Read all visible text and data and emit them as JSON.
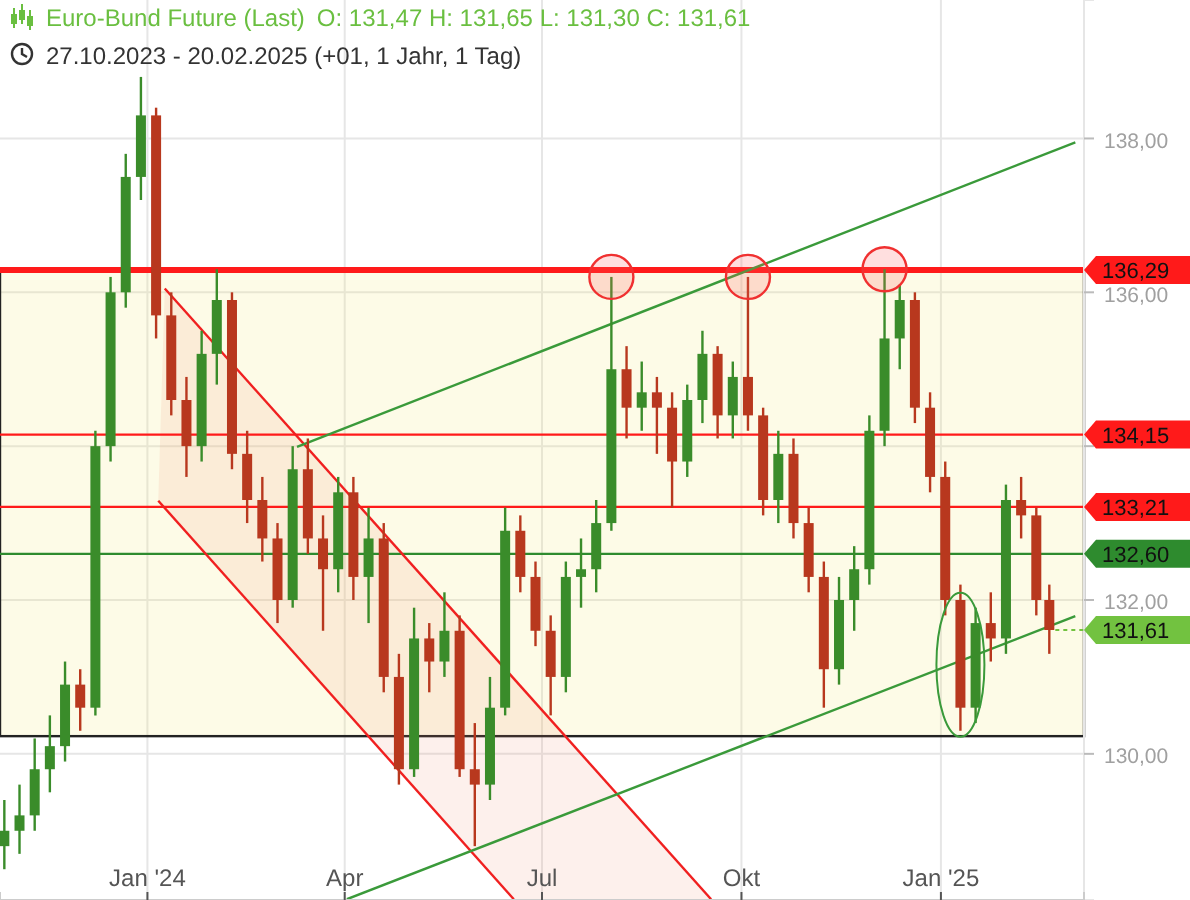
{
  "chart_data": {
    "type": "candlestick",
    "title": "Euro-Bund Future (Last)",
    "subtitle": "27.10.2023 - 20.02.2025   (+01, 1 Jahr, 1 Tag)",
    "annotations": [
      "O: 131,47  H: 131,65  L: 131,30  C: 131,61",
      {
        "text": "131,61",
        "x": "2025-02-20",
        "y": 131.61
      }
    ],
    "x": [
      "2023-10-27",
      "2023-11-03",
      "2023-11-10",
      "2023-11-17",
      "2023-11-24",
      "2023-12-01",
      "2023-12-08",
      "2023-12-15",
      "2023-12-22",
      "2023-12-29",
      "2024-01-05",
      "2024-01-12",
      "2024-01-19",
      "2024-01-26",
      "2024-02-02",
      "2024-02-09",
      "2024-02-16",
      "2024-02-23",
      "2024-03-01",
      "2024-03-08",
      "2024-03-15",
      "2024-03-22",
      "2024-03-29",
      "2024-04-05",
      "2024-04-12",
      "2024-04-19",
      "2024-04-26",
      "2024-05-03",
      "2024-05-10",
      "2024-05-17",
      "2024-05-24",
      "2024-05-31",
      "2024-06-07",
      "2024-06-14",
      "2024-06-21",
      "2024-06-28",
      "2024-07-05",
      "2024-07-12",
      "2024-07-19",
      "2024-07-26",
      "2024-08-02",
      "2024-08-09",
      "2024-08-16",
      "2024-08-23",
      "2024-08-30",
      "2024-09-06",
      "2024-09-13",
      "2024-09-20",
      "2024-09-27",
      "2024-10-04",
      "2024-10-11",
      "2024-10-18",
      "2024-10-25",
      "2024-11-01",
      "2024-11-08",
      "2024-11-15",
      "2024-11-22",
      "2024-11-29",
      "2024-12-06",
      "2024-12-13",
      "2024-12-20",
      "2024-12-27",
      "2025-01-03",
      "2025-01-10",
      "2025-01-17",
      "2025-01-24",
      "2025-01-31",
      "2025-02-07",
      "2025-02-14",
      "2025-02-20"
    ],
    "ohlc": [
      [
        128.8,
        129.4,
        128.5,
        129.0
      ],
      [
        129.0,
        129.6,
        128.7,
        129.2
      ],
      [
        129.2,
        130.2,
        129.0,
        129.8
      ],
      [
        129.8,
        130.5,
        129.5,
        130.1
      ],
      [
        130.1,
        131.2,
        129.9,
        130.9
      ],
      [
        130.9,
        131.1,
        130.3,
        130.6
      ],
      [
        130.6,
        134.2,
        130.5,
        134.0
      ],
      [
        134.0,
        136.2,
        133.8,
        136.0
      ],
      [
        136.0,
        137.8,
        135.8,
        137.5
      ],
      [
        137.5,
        138.8,
        137.2,
        138.3
      ],
      [
        138.3,
        138.4,
        135.4,
        135.7
      ],
      [
        135.7,
        136.0,
        134.4,
        134.6
      ],
      [
        134.6,
        134.9,
        133.6,
        134.0
      ],
      [
        134.0,
        135.5,
        133.8,
        135.2
      ],
      [
        135.2,
        136.3,
        134.8,
        135.9
      ],
      [
        135.9,
        136.0,
        133.7,
        133.9
      ],
      [
        133.9,
        134.2,
        133.0,
        133.3
      ],
      [
        133.3,
        133.6,
        132.5,
        132.8
      ],
      [
        132.8,
        133.0,
        131.7,
        132.0
      ],
      [
        132.0,
        134.0,
        131.9,
        133.7
      ],
      [
        133.7,
        134.1,
        132.6,
        132.8
      ],
      [
        132.8,
        133.1,
        131.6,
        132.4
      ],
      [
        132.4,
        133.6,
        132.1,
        133.4
      ],
      [
        133.4,
        133.6,
        132.0,
        132.3
      ],
      [
        132.3,
        133.2,
        131.7,
        132.8
      ],
      [
        132.8,
        133.0,
        130.8,
        131.0
      ],
      [
        131.0,
        131.3,
        129.6,
        129.8
      ],
      [
        129.8,
        131.9,
        129.7,
        131.5
      ],
      [
        131.5,
        131.7,
        130.8,
        131.2
      ],
      [
        131.2,
        132.1,
        131.0,
        131.6
      ],
      [
        131.6,
        131.8,
        129.7,
        129.8
      ],
      [
        129.8,
        130.4,
        128.8,
        129.6
      ],
      [
        129.6,
        131.0,
        129.4,
        130.6
      ],
      [
        130.6,
        133.2,
        130.5,
        132.9
      ],
      [
        132.9,
        133.1,
        132.1,
        132.3
      ],
      [
        132.3,
        132.5,
        131.4,
        131.6
      ],
      [
        131.6,
        131.8,
        130.5,
        131.0
      ],
      [
        131.0,
        132.5,
        130.8,
        132.3
      ],
      [
        132.3,
        132.8,
        131.9,
        132.4
      ],
      [
        132.4,
        133.3,
        132.1,
        133.0
      ],
      [
        133.0,
        136.2,
        132.9,
        135.0
      ],
      [
        135.0,
        135.3,
        134.1,
        134.5
      ],
      [
        134.5,
        135.1,
        134.2,
        134.7
      ],
      [
        134.7,
        134.9,
        133.9,
        134.5
      ],
      [
        134.5,
        134.7,
        133.2,
        133.8
      ],
      [
        133.8,
        134.8,
        133.6,
        134.6
      ],
      [
        134.6,
        135.5,
        134.3,
        135.2
      ],
      [
        135.2,
        135.3,
        134.1,
        134.4
      ],
      [
        134.4,
        135.1,
        134.1,
        134.9
      ],
      [
        134.9,
        136.2,
        134.2,
        134.4
      ],
      [
        134.4,
        134.5,
        133.1,
        133.3
      ],
      [
        133.3,
        134.2,
        133.0,
        133.9
      ],
      [
        133.9,
        134.1,
        132.8,
        133.0
      ],
      [
        133.0,
        133.2,
        132.1,
        132.3
      ],
      [
        132.3,
        132.5,
        130.6,
        131.1
      ],
      [
        131.1,
        132.3,
        130.9,
        132.0
      ],
      [
        132.0,
        132.7,
        131.6,
        132.4
      ],
      [
        132.4,
        134.4,
        132.2,
        134.2
      ],
      [
        134.2,
        136.3,
        134.0,
        135.4
      ],
      [
        135.4,
        136.1,
        135.0,
        135.9
      ],
      [
        135.9,
        136.0,
        134.3,
        134.5
      ],
      [
        134.5,
        134.7,
        133.4,
        133.6
      ],
      [
        133.6,
        133.8,
        131.8,
        132.0
      ],
      [
        132.0,
        132.2,
        130.3,
        130.6
      ],
      [
        130.6,
        131.9,
        130.4,
        131.7
      ],
      [
        131.7,
        132.1,
        131.2,
        131.5
      ],
      [
        131.5,
        133.5,
        131.3,
        133.3
      ],
      [
        133.3,
        133.6,
        132.8,
        133.1
      ],
      [
        133.1,
        133.2,
        131.8,
        132.0
      ],
      [
        132.0,
        132.2,
        131.3,
        131.61
      ]
    ],
    "colors": [
      "#3a8c2a",
      "#3a8c2a",
      "#3a8c2a",
      "#3a8c2a",
      "#3a8c2a",
      "#b8381e",
      "#3a8c2a",
      "#3a8c2a",
      "#3a8c2a",
      "#3a8c2a",
      "#b8381e",
      "#b8381e",
      "#b8381e",
      "#3a8c2a",
      "#3a8c2a",
      "#b8381e",
      "#b8381e",
      "#b8381e",
      "#b8381e",
      "#3a8c2a",
      "#b8381e",
      "#b8381e",
      "#3a8c2a",
      "#b8381e",
      "#3a8c2a",
      "#b8381e",
      "#b8381e",
      "#3a8c2a",
      "#b8381e",
      "#3a8c2a",
      "#b8381e",
      "#b8381e",
      "#3a8c2a",
      "#3a8c2a",
      "#b8381e",
      "#b8381e",
      "#b8381e",
      "#3a8c2a",
      "#3a8c2a",
      "#3a8c2a",
      "#3a8c2a",
      "#b8381e",
      "#3a8c2a",
      "#b8381e",
      "#b8381e",
      "#3a8c2a",
      "#3a8c2a",
      "#b8381e",
      "#3a8c2a",
      "#b8381e",
      "#b8381e",
      "#3a8c2a",
      "#b8381e",
      "#b8381e",
      "#b8381e",
      "#3a8c2a",
      "#3a8c2a",
      "#3a8c2a",
      "#3a8c2a",
      "#3a8c2a",
      "#b8381e",
      "#b8381e",
      "#b8381e",
      "#b8381e",
      "#3a8c2a",
      "#b8381e",
      "#3a8c2a",
      "#b8381e",
      "#b8381e",
      "#b8381e"
    ],
    "series": [
      {
        "type": "line",
        "color": "#f02020",
        "x": [
          "2024-01-09",
          "2024-09-17"
        ],
        "values": [
          136.05,
          128.11
        ]
      },
      {
        "type": "line",
        "color": "#f02020",
        "x": [
          "2024-01-06",
          "2024-06-18"
        ],
        "values": [
          133.29,
          128.11
        ]
      },
      {
        "type": "line",
        "color": "#3a9a3a",
        "x": [
          "2024-03-10",
          "2025-03-04"
        ],
        "values": [
          133.99,
          137.95
        ]
      },
      {
        "type": "line",
        "color": "#3a9a3a",
        "x": [
          "2024-04-02",
          "2025-03-04"
        ],
        "values": [
          128.11,
          131.79
        ]
      }
    ],
    "bands": [
      {
        "axis": "y",
        "from": 130.23,
        "to": 136.29,
        "color": "#f5eb78"
      }
    ],
    "ref_lines": [
      {
        "axis": "y",
        "value": 136.29,
        "label": "136,29",
        "color": "#ff1a1a"
      },
      {
        "axis": "y",
        "value": 134.15,
        "label": "134,15",
        "color": "#ff1a1a"
      },
      {
        "axis": "y",
        "value": 133.21,
        "label": "133,21",
        "color": "#ff1a1a"
      },
      {
        "axis": "y",
        "value": 132.6,
        "label": "132,60",
        "color": "#2e8b2e"
      }
    ],
    "xlim": [
      "2023-10-25",
      "2025-03-08"
    ],
    "xticks": [
      {
        "value": "2024-01-01",
        "label": "Jan '24"
      },
      {
        "value": "2024-04-01",
        "label": "Apr"
      },
      {
        "value": "2024-07-01",
        "label": "Jul"
      },
      {
        "value": "2024-10-01",
        "label": "Okt"
      },
      {
        "value": "2025-01-01",
        "label": "Jan '25"
      }
    ],
    "ylim": [
      128.1,
      139.8
    ],
    "yticks": [
      {
        "value": 130,
        "label": "130,00"
      },
      {
        "value": 132,
        "label": "132,00"
      },
      {
        "value": 134,
        "label": null
      },
      {
        "value": 136,
        "label": "136,00"
      },
      {
        "value": 138,
        "label": "138,00"
      }
    ],
    "grid": true
  }
}
